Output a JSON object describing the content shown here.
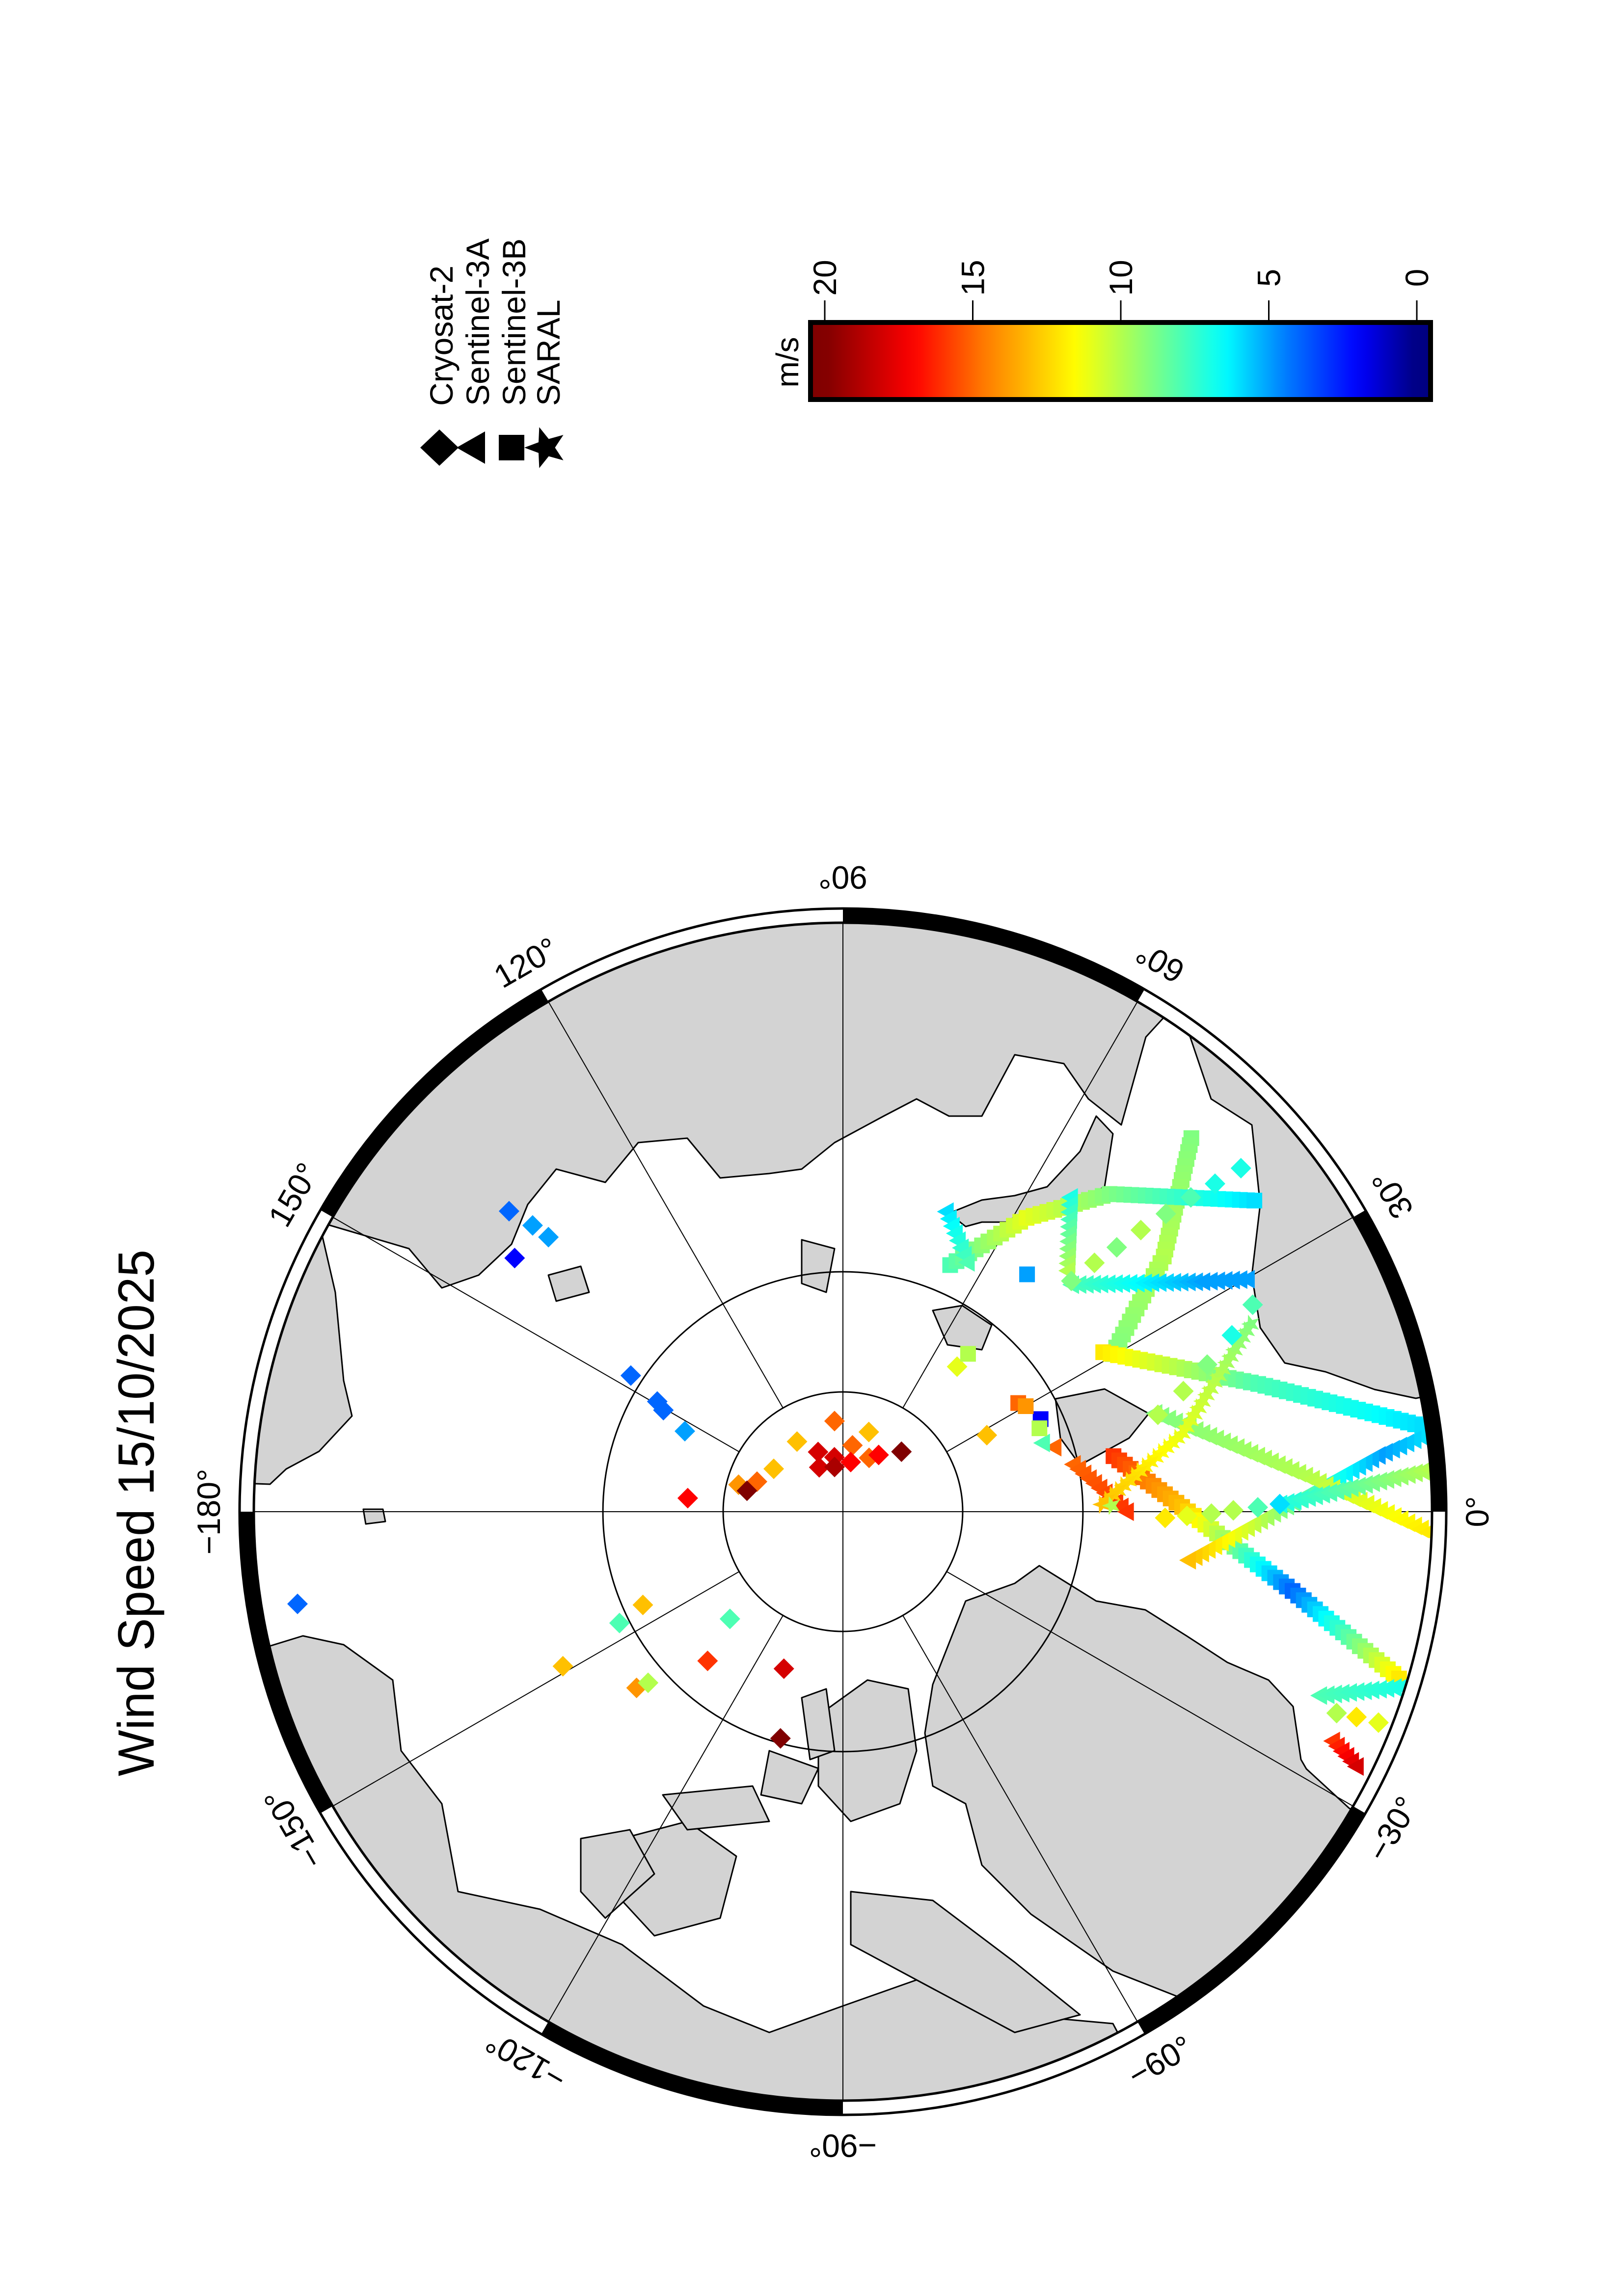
{
  "title": "Wind Speed 15/10/2025",
  "legend": {
    "items": [
      {
        "label": "Cryosat-2",
        "symbol": "diamond"
      },
      {
        "label": "Sentinel-3A",
        "symbol": "triangle"
      },
      {
        "label": "Sentinel-3B",
        "symbol": "square"
      },
      {
        "label": "SARAL",
        "symbol": "star"
      }
    ]
  },
  "colorbar": {
    "unit": "m/s",
    "range": [
      0,
      20
    ],
    "ticks": [
      "20",
      "15",
      "10",
      "5",
      "0"
    ],
    "tick_values": [
      20,
      15,
      10,
      5,
      0
    ],
    "stops": [
      [
        0,
        "#000080"
      ],
      [
        2,
        "#0000ff"
      ],
      [
        4.5,
        "#0080ff"
      ],
      [
        6.5,
        "#00ffff"
      ],
      [
        9,
        "#80ff80"
      ],
      [
        11.5,
        "#ffff00"
      ],
      [
        14.5,
        "#ff8000"
      ],
      [
        17,
        "#ff0000"
      ],
      [
        20,
        "#800000"
      ]
    ]
  },
  "map": {
    "projection": "north polar stereographic",
    "parallels": [
      85,
      80
    ],
    "meridian_step": 30,
    "land_color": "#d3d3d3",
    "lon_labels": [
      {
        "lon": 0,
        "text": "0°"
      },
      {
        "lon": 30,
        "text": "30°"
      },
      {
        "lon": 60,
        "text": "60°"
      },
      {
        "lon": 90,
        "text": "90°"
      },
      {
        "lon": 120,
        "text": "120°"
      },
      {
        "lon": 150,
        "text": "150°"
      },
      {
        "lon": 180,
        "text": "−180°"
      },
      {
        "lon": -150,
        "text": "−150°"
      },
      {
        "lon": -120,
        "text": "−120°"
      },
      {
        "lon": -90,
        "text": "−90°"
      },
      {
        "lon": -60,
        "text": "−60°"
      },
      {
        "lon": -30,
        "text": "−30°"
      }
    ]
  },
  "map_data": {
    "variable": "wind speed (m/s)",
    "point_format": [
      "lon",
      "lat",
      "wind_speed"
    ],
    "points": {
      "Cryosat-2": [
        [
          95.3,
          86.2,
          15
        ],
        [
          123.2,
          86.5,
          13
        ],
        [
          72.0,
          86.5,
          13
        ],
        [
          81.8,
          87.2,
          15
        ],
        [
          112.6,
          87.3,
          18
        ],
        [
          98.9,
          87.7,
          18
        ],
        [
          118.1,
          87.9,
          18
        ],
        [
          100.6,
          88.1,
          19
        ],
        [
          81.1,
          87.9,
          17
        ],
        [
          64.1,
          87.5,
          15
        ],
        [
          57.8,
          87.2,
          17
        ],
        [
          45.7,
          86.5,
          20
        ],
        [
          148.2,
          86.6,
          13
        ],
        [
          160.7,
          86.2,
          15
        ],
        [
          165.5,
          85.5,
          14
        ],
        [
          167.7,
          85.9,
          20
        ],
        [
          147.3,
          79.5,
          4
        ],
        [
          149.3,
          81.0,
          4
        ],
        [
          150.5,
          81.4,
          4
        ],
        [
          153.0,
          82.6,
          5
        ],
        [
          175.0,
          83.5,
          17
        ],
        [
          138.0,
          71.4,
          4
        ],
        [
          137.3,
          72.5,
          5
        ],
        [
          137.0,
          73.3,
          5
        ],
        [
          142.3,
          72.8,
          2
        ],
        [
          -170.4,
          67.2,
          4
        ],
        [
          -155.0,
          80.8,
          13
        ],
        [
          -153.5,
          79.6,
          8
        ],
        [
          -136.5,
          83.5,
          8
        ],
        [
          -151.1,
          76.7,
          13
        ],
        [
          -132.2,
          81.6,
          16
        ],
        [
          -110.6,
          83.0,
          18
        ],
        [
          -139.5,
          78.7,
          14
        ],
        [
          -138.7,
          79.2,
          10
        ],
        [
          -105.4,
          80.2,
          20
        ],
        [
          51.8,
          82.3,
          11
        ],
        [
          28.0,
          83.2,
          13
        ],
        [
          40.8,
          68.3,
          7
        ],
        [
          41.4,
          69.5,
          7
        ],
        [
          42.1,
          70.6,
          8
        ],
        [
          42.7,
          71.8,
          9
        ],
        [
          43.4,
          73.0,
          10
        ],
        [
          44.0,
          74.2,
          9
        ],
        [
          44.7,
          75.3,
          10
        ],
        [
          45.3,
          76.5,
          9
        ],
        [
          26.8,
          71.0,
          8
        ],
        [
          24.4,
          72.3,
          7
        ],
        [
          22.0,
          73.7,
          9
        ],
        [
          19.5,
          75.0,
          10
        ],
        [
          17.1,
          76.3,
          10
        ],
        [
          -1.1,
          76.6,
          12
        ],
        [
          -0.7,
          75.7,
          11
        ],
        [
          -0.3,
          74.7,
          10
        ],
        [
          0.2,
          73.8,
          10
        ],
        [
          0.6,
          72.8,
          8
        ],
        [
          1.0,
          71.9,
          6
        ],
        [
          -22.2,
          68.0,
          10
        ],
        [
          -21.8,
          67.2,
          12
        ],
        [
          -21.5,
          66.3,
          11
        ]
      ],
      "Sentinel-3A": [
        [
          17.0,
          80.8,
          15
        ],
        [
          19.0,
          81.2,
          8
        ]
      ],
      "Sentinel-3B": [
        [
          25.1,
          80.9,
          2
        ],
        [
          23.0,
          81.1,
          10
        ],
        [
          31.8,
          81.4,
          15
        ],
        [
          30.0,
          81.2,
          14
        ],
        [
          52.2,
          77.5,
          5
        ],
        [
          51.6,
          81.6,
          10
        ]
      ],
      "SARAL": [
        [
          1.3,
          78.8,
          10
        ]
      ]
    },
    "tracks": [
      {
        "satellite": "Sentinel-3B",
        "path": [
          [
            47.0,
            68.9,
            9
          ],
          [
            38.5,
            73.0,
            10
          ],
          [
            30.3,
            77.0,
            9
          ]
        ]
      },
      {
        "satellite": "Sentinel-3B",
        "path": [
          [
            66.5,
            78.8,
            8
          ],
          [
            58.0,
            75.6,
            11
          ],
          [
            50.0,
            72.8,
            9
          ],
          [
            37.1,
            68.7,
            6
          ]
        ]
      },
      {
        "satellite": "Sentinel-3B",
        "path": [
          [
            31.5,
            77.3,
            12
          ],
          [
            17.1,
            72.0,
            8
          ],
          [
            8.4,
            65.9,
            6
          ]
        ]
      },
      {
        "satellite": "Sentinel-3B",
        "path": [
          [
            11.6,
            78.5,
            16
          ],
          [
            0.8,
            75.9,
            13
          ],
          [
            -10.0,
            71.1,
            4
          ],
          [
            -16.7,
            66.1,
            12
          ]
        ]
      },
      {
        "satellite": "Sentinel-3A",
        "path": [
          [
            44.8,
            76.6,
            8
          ],
          [
            32.6,
            72.3,
            5
          ],
          [
            29.9,
            70.7,
            5
          ]
        ]
      },
      {
        "satellite": "Sentinel-3A",
        "path": [
          [
            54.1,
            73.9,
            7
          ],
          [
            47.0,
            76.3,
            10
          ]
        ]
      },
      {
        "satellite": "Sentinel-3A",
        "path": [
          [
            71.0,
            76.8,
            6
          ],
          [
            63.5,
            78.4,
            8
          ]
        ]
      },
      {
        "satellite": "Sentinel-3A",
        "path": [
          [
            7.4,
            66.0,
            6
          ],
          [
            6.0,
            67.8,
            5
          ],
          [
            -8.0,
            75.5,
            13
          ]
        ]
      },
      {
        "satellite": "Sentinel-3A",
        "path": [
          [
            17.5,
            76.4,
            9
          ],
          [
            4.4,
            70.8,
            10
          ],
          [
            -2.0,
            65.9,
            12
          ]
        ]
      },
      {
        "satellite": "Sentinel-3A",
        "path": [
          [
            -21.1,
            68.9,
            8
          ],
          [
            -17.4,
            65.9,
            7
          ]
        ]
      },
      {
        "satellite": "Sentinel-3A",
        "path": [
          [
            -25.1,
            67.7,
            16
          ],
          [
            -26.4,
            66.4,
            18
          ]
        ]
      },
      {
        "satellite": "Sentinel-3A",
        "path": [
          [
            11.6,
            80.2,
            15
          ],
          [
            0.0,
            78.2,
            16
          ]
        ]
      },
      {
        "satellite": "Sentinel-3A",
        "path": [
          [
            1.0,
            71.9,
            7
          ],
          [
            4.1,
            65.8,
            10
          ]
        ]
      },
      {
        "satellite": "SARAL",
        "path": [
          [
            24.7,
            71.4,
            9
          ],
          [
            13.0,
            75.5,
            11
          ],
          [
            1.6,
            79.2,
            13
          ]
        ]
      }
    ]
  }
}
